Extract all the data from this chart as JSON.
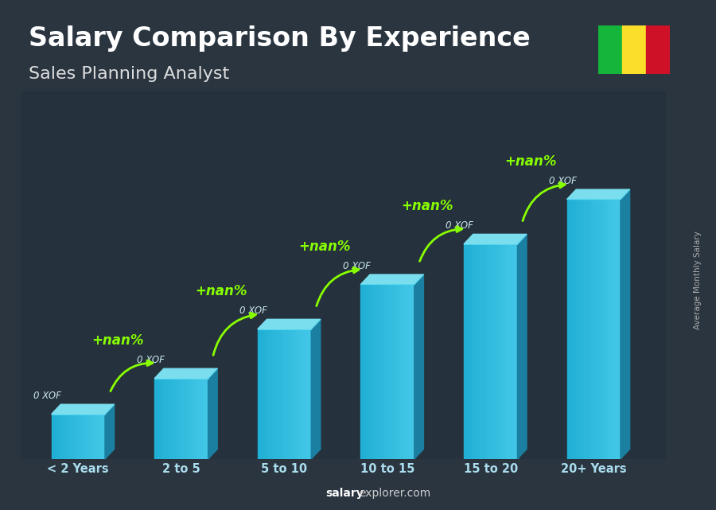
{
  "title": "Salary Comparison By Experience",
  "subtitle": "Sales Planning Analyst",
  "categories": [
    "< 2 Years",
    "2 to 5",
    "5 to 10",
    "10 to 15",
    "15 to 20",
    "20+ Years"
  ],
  "bar_labels": [
    "0 XOF",
    "0 XOF",
    "0 XOF",
    "0 XOF",
    "0 XOF",
    "0 XOF"
  ],
  "arrow_labels": [
    "+nan%",
    "+nan%",
    "+nan%",
    "+nan%",
    "+nan%"
  ],
  "bar_heights": [
    1.0,
    1.8,
    2.9,
    3.9,
    4.8,
    5.8
  ],
  "bar_color_front": "#29b6d8",
  "bar_color_top": "#7adeef",
  "bar_color_side": "#1a7fa0",
  "background_color": "#2a3540",
  "title_color": "#ffffff",
  "subtitle_color": "#dddddd",
  "label_color": "#cce8f0",
  "arrow_color": "#88ff00",
  "footer_salary_color": "#ffffff",
  "footer_explorer_color": "#cccccc",
  "ylabel_text": "Average Monthly Salary",
  "title_fontsize": 24,
  "subtitle_fontsize": 16,
  "flag_colors": [
    "#14B53A",
    "#FBDE2A",
    "#CE1126"
  ]
}
